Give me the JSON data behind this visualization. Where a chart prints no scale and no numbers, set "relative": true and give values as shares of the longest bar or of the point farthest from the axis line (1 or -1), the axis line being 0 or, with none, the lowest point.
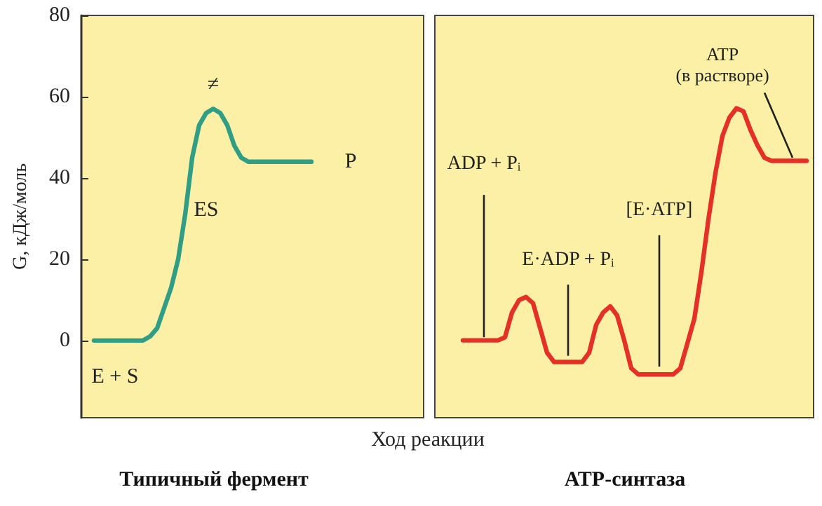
{
  "chart_data": [
    {
      "type": "line",
      "title": "Типичный фермент",
      "xlabel": "Ход реакции",
      "ylabel": "G, кДж/моль",
      "color": "#2f9e85",
      "marker": "none",
      "tick_labels": "y",
      "categories": [
        null,
        null,
        null,
        null,
        null,
        null,
        null,
        null,
        null,
        null,
        null,
        null,
        null,
        null,
        null,
        null,
        null,
        null,
        null,
        null,
        null,
        null,
        null,
        null,
        null,
        null,
        null,
        null,
        null,
        null,
        null,
        null
      ],
      "values": [
        0,
        0,
        0,
        0,
        0,
        0,
        0,
        0,
        1,
        3,
        8,
        13,
        20,
        31,
        45,
        53,
        56,
        57,
        56,
        53,
        48,
        45,
        44,
        44,
        44,
        44,
        44,
        44,
        44,
        44,
        44,
        44
      ],
      "ylim": [
        -19,
        80
      ],
      "yticks": [
        0,
        20,
        40,
        60,
        80
      ],
      "annotations": [
        "≠",
        "ES",
        "P",
        "E + S"
      ]
    },
    {
      "type": "line",
      "title": "АТР-синтаза",
      "color": "#e53027",
      "marker": "none",
      "relative": true,
      "categories": [
        null,
        null,
        null,
        null,
        null,
        null,
        null,
        null,
        null,
        null,
        null,
        null,
        null,
        null,
        null,
        null,
        null,
        null,
        null,
        null,
        null,
        null,
        null,
        null,
        null,
        null,
        null,
        null,
        null,
        null,
        null,
        null,
        null,
        null,
        null,
        null,
        null,
        null,
        null,
        null,
        null,
        null,
        null,
        null,
        null,
        null,
        null,
        null,
        null,
        null
      ],
      "values": [
        0.25,
        0.25,
        0.25,
        0.25,
        0.25,
        0.25,
        0.26,
        0.34,
        0.38,
        0.39,
        0.37,
        0.29,
        0.21,
        0.18,
        0.18,
        0.18,
        0.18,
        0.18,
        0.21,
        0.3,
        0.34,
        0.36,
        0.33,
        0.25,
        0.16,
        0.14,
        0.14,
        0.14,
        0.14,
        0.14,
        0.14,
        0.16,
        0.24,
        0.32,
        0.47,
        0.64,
        0.79,
        0.91,
        0.97,
        1,
        0.99,
        0.93,
        0.88,
        0.84,
        0.83,
        0.83,
        0.83,
        0.83,
        0.83,
        0.83
      ],
      "annotations": [
        "ADP + Pᵢ",
        "E·ADP + Pᵢ",
        "[E·ATP]",
        "ATP\n(в растворе)"
      ]
    }
  ]
}
